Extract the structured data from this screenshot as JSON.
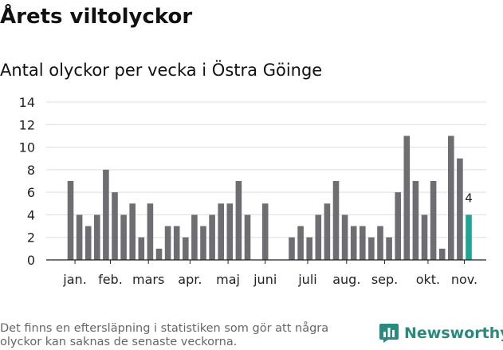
{
  "header": {
    "title": "Årets viltolyckor",
    "subtitle": "Antal olyckor per vecka i Östra Göinge"
  },
  "footer": {
    "note": "Det finns en eftersläpning i statistiken som gör att några olyckor kan saknas de senaste veckorna.",
    "brand": "Newsworthy"
  },
  "colors": {
    "bar": "#6e6e72",
    "highlight": "#1ea395",
    "grid": "#dddddd",
    "brand": "#2a8a7e"
  },
  "chart_data": {
    "type": "bar",
    "title": "Antal olyckor per vecka i Östra Göinge",
    "xlabel": "",
    "ylabel": "",
    "ylim": [
      0,
      14
    ],
    "yticks": [
      0,
      2,
      4,
      6,
      8,
      10,
      12,
      14
    ],
    "grid": true,
    "x_unit": "week",
    "weeks": [
      1,
      2,
      3,
      4,
      5,
      6,
      7,
      8,
      9,
      10,
      11,
      12,
      13,
      14,
      15,
      16,
      17,
      18,
      19,
      20,
      21,
      22,
      23,
      24,
      25,
      26,
      27,
      28,
      29,
      30,
      31,
      32,
      33,
      34,
      35,
      36,
      37,
      38,
      39,
      40,
      41,
      42,
      43,
      44,
      45,
      46
    ],
    "values": [
      7,
      4,
      3,
      4,
      8,
      6,
      4,
      5,
      2,
      5,
      1,
      3,
      3,
      2,
      4,
      3,
      4,
      5,
      5,
      7,
      4,
      0,
      5,
      0,
      0,
      2,
      3,
      2,
      4,
      5,
      7,
      4,
      3,
      3,
      2,
      3,
      2,
      6,
      11,
      7,
      4,
      7,
      1,
      11,
      9,
      4
    ],
    "month_labels": [
      {
        "label": "jan.",
        "week": 1.5
      },
      {
        "label": "feb.",
        "week": 5.5
      },
      {
        "label": "mars",
        "week": 9.8
      },
      {
        "label": "apr.",
        "week": 14.5
      },
      {
        "label": "maj",
        "week": 18.8
      },
      {
        "label": "juni",
        "week": 23
      },
      {
        "label": "juli",
        "week": 27.8
      },
      {
        "label": "aug.",
        "week": 32.2
      },
      {
        "label": "sep.",
        "week": 36.5
      },
      {
        "label": "okt.",
        "week": 41.4
      },
      {
        "label": "nov.",
        "week": 45.5
      }
    ],
    "highlight_week": 46,
    "annotations": [
      {
        "week": 46,
        "text": "4"
      }
    ]
  }
}
